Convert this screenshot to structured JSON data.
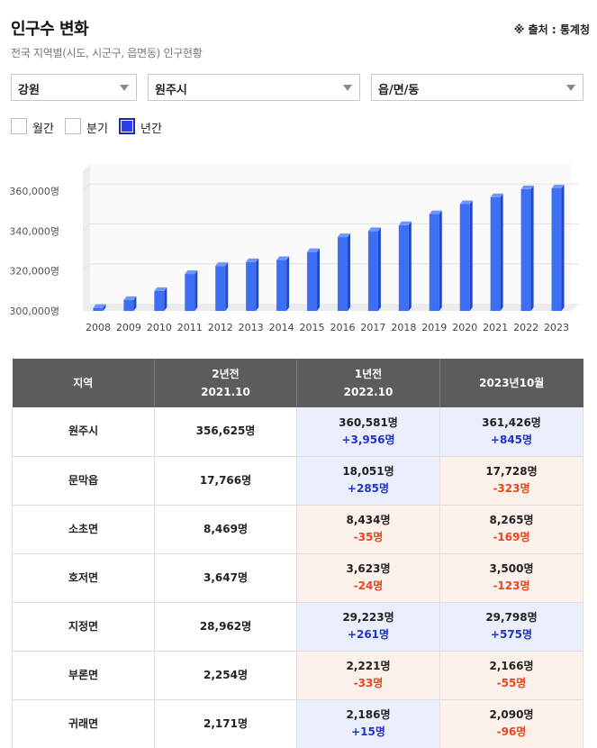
{
  "header": {
    "title": "인구수 변화",
    "source": "※ 출처 : 통계청",
    "subtitle": "전국 지역별(시도, 시군구, 읍면동) 인구현황"
  },
  "selects": {
    "province": "강원",
    "city": "원주시",
    "town": "읍/면/동"
  },
  "periods": [
    {
      "label": "월간",
      "checked": false
    },
    {
      "label": "분기",
      "checked": false
    },
    {
      "label": "년간",
      "checked": true
    }
  ],
  "colors": {
    "bar": "#3d6ff5",
    "bar_side": "#2049c8",
    "bar_top": "#6f95ff",
    "up_bg": "#ebeefc",
    "down_bg": "#fdf1ec",
    "up_text": "#2233cc",
    "down_text": "#e8461e"
  },
  "chart_data": {
    "type": "bar",
    "categories": [
      "2008",
      "2009",
      "2010",
      "2011",
      "2012",
      "2013",
      "2014",
      "2015",
      "2016",
      "2017",
      "2018",
      "2019",
      "2020",
      "2021",
      "2022",
      "2023"
    ],
    "values": [
      301500,
      305500,
      310000,
      318500,
      322500,
      324500,
      325500,
      329500,
      337000,
      340000,
      343000,
      348500,
      353500,
      357000,
      361000,
      361400
    ],
    "ylim": [
      300000,
      370000
    ],
    "yticks": [
      300000,
      320000,
      340000,
      360000
    ],
    "ytick_labels": [
      "300,000명",
      "320,000명",
      "340,000명",
      "360,000명"
    ],
    "grid": true,
    "title": "",
    "xlabel": "",
    "ylabel": ""
  },
  "table": {
    "headers": [
      {
        "line1": "지역",
        "line2": ""
      },
      {
        "line1": "2년전",
        "line2": "2021.10"
      },
      {
        "line1": "1년전",
        "line2": "2022.10"
      },
      {
        "line1": "2023년10월",
        "line2": ""
      }
    ],
    "rows": [
      {
        "region": "원주시",
        "y2": "356,625명",
        "y1": "360,581명",
        "y1_delta": "+3,956명",
        "y1_dir": "up",
        "cur": "361,426명",
        "cur_delta": "+845명",
        "cur_dir": "up"
      },
      {
        "region": "문막읍",
        "y2": "17,766명",
        "y1": "18,051명",
        "y1_delta": "+285명",
        "y1_dir": "up",
        "cur": "17,728명",
        "cur_delta": "-323명",
        "cur_dir": "down"
      },
      {
        "region": "소초면",
        "y2": "8,469명",
        "y1": "8,434명",
        "y1_delta": "-35명",
        "y1_dir": "down",
        "cur": "8,265명",
        "cur_delta": "-169명",
        "cur_dir": "down"
      },
      {
        "region": "호저면",
        "y2": "3,647명",
        "y1": "3,623명",
        "y1_delta": "-24명",
        "y1_dir": "down",
        "cur": "3,500명",
        "cur_delta": "-123명",
        "cur_dir": "down"
      },
      {
        "region": "지정면",
        "y2": "28,962명",
        "y1": "29,223명",
        "y1_delta": "+261명",
        "y1_dir": "up",
        "cur": "29,798명",
        "cur_delta": "+575명",
        "cur_dir": "up"
      },
      {
        "region": "부론면",
        "y2": "2,254명",
        "y1": "2,221명",
        "y1_delta": "-33명",
        "y1_dir": "down",
        "cur": "2,166명",
        "cur_delta": "-55명",
        "cur_dir": "down"
      },
      {
        "region": "귀래면",
        "y2": "2,171명",
        "y1": "2,186명",
        "y1_delta": "+15명",
        "y1_dir": "up",
        "cur": "2,090명",
        "cur_delta": "-96명",
        "cur_dir": "down"
      }
    ]
  }
}
